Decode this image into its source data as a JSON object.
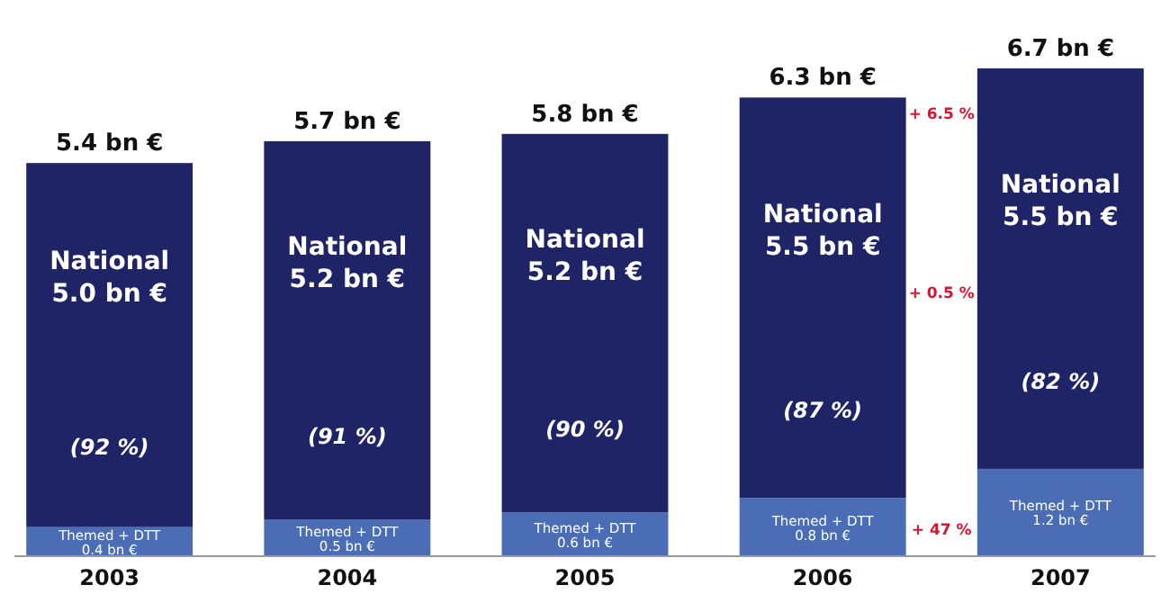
{
  "chart_data": {
    "type": "bar",
    "stacked": true,
    "categories": [
      "2003",
      "2004",
      "2005",
      "2006",
      "2007"
    ],
    "series": [
      {
        "name": "Themed + DTT",
        "color": "#4a6db5",
        "values": [
          0.4,
          0.5,
          0.6,
          0.8,
          1.2
        ],
        "value_labels": [
          "0.4 bn €",
          "0.5 bn €",
          "0.6 bn €",
          "0.8 bn €",
          "1.2 bn €"
        ]
      },
      {
        "name": "National",
        "color": "#1f2466",
        "values": [
          5.0,
          5.2,
          5.2,
          5.5,
          5.5
        ],
        "value_labels": [
          "5.0 bn €",
          "5.2 bn €",
          "5.2 bn €",
          "5.5 bn €",
          "5.5 bn €"
        ]
      }
    ],
    "totals": [
      "5.4 bn €",
      "5.7 bn €",
      "5.8 bn €",
      "6.3 bn €",
      "6.7 bn €"
    ],
    "annotations": [
      "(92 %)",
      "(91 %)",
      "(90 %)",
      "(87 %)",
      "(82 %)",
      "+ 6.5 %",
      "+ 0.5 %",
      "+ 47 %"
    ]
  }
}
